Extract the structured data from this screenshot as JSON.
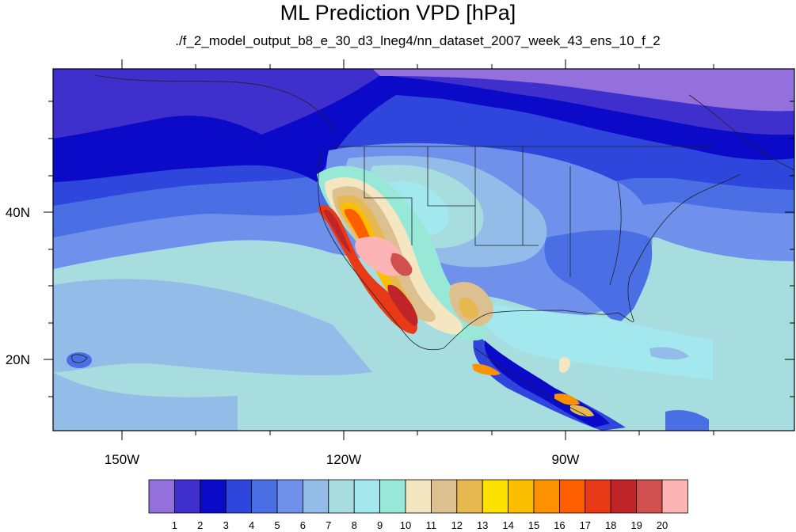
{
  "title": "ML Prediction VPD [hPa]",
  "subtitle": "./f_2_model_output_b8_e_30_d3_lneg4/nn_dataset_2007_week_43_ens_10_f_2",
  "map": {
    "lon_ticks": [
      "150W",
      "120W",
      "90W"
    ],
    "lat_ticks": [
      "40N",
      "20N"
    ]
  },
  "colorbar": {
    "labels": [
      "1",
      "2",
      "3",
      "4",
      "5",
      "6",
      "7",
      "8",
      "9",
      "10",
      "11",
      "12",
      "13",
      "14",
      "15",
      "16",
      "17",
      "18",
      "19",
      "20"
    ],
    "colors": [
      "#9370db",
      "#3f2fcd",
      "#0a0ac8",
      "#2f46dc",
      "#4a6fe4",
      "#6f91ec",
      "#93bde8",
      "#a8dde0",
      "#a2e8ee",
      "#98e8d8",
      "#f3e6c0",
      "#dcc090",
      "#e6b850",
      "#fce000",
      "#fcbe00",
      "#fc9200",
      "#fc5e00",
      "#e83a16",
      "#be2428",
      "#d05050",
      "#fcb4b4"
    ]
  },
  "chart_data": {
    "type": "heatmap",
    "title": "ML Prediction VPD [hPa]",
    "subtitle": "./f_2_model_output_b8_e_30_d3_lneg4/nn_dataset_2007_week_43_ens_10_f_2",
    "x_axis": {
      "ticks": [
        "150W",
        "120W",
        "90W"
      ],
      "range": [
        "160W",
        "60W"
      ]
    },
    "y_axis": {
      "ticks": [
        "40N",
        "20N"
      ],
      "range": [
        "10N",
        "60N"
      ]
    },
    "colorbar_levels": [
      1,
      2,
      3,
      4,
      5,
      6,
      7,
      8,
      9,
      10,
      11,
      12,
      13,
      14,
      15,
      16,
      17,
      18,
      19,
      20
    ],
    "units": "hPa"
  }
}
